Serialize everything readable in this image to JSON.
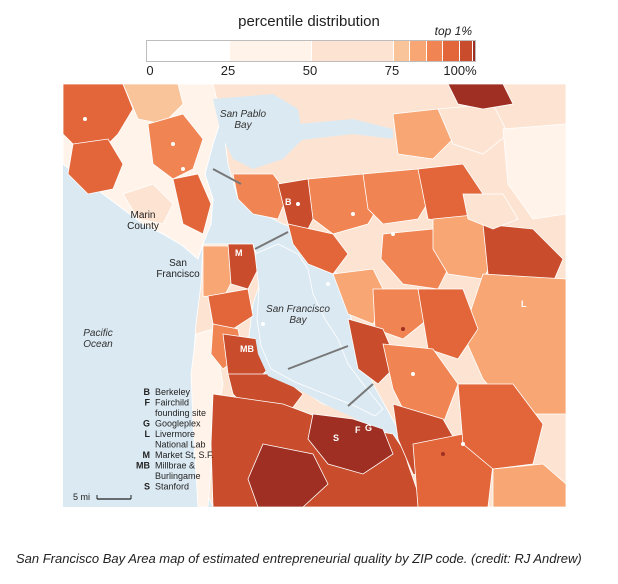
{
  "legend": {
    "title": "percentile distribution",
    "top_label": "top 1%",
    "ticks": [
      {
        "label": "0",
        "pos": 0
      },
      {
        "label": "25",
        "pos": 25
      },
      {
        "label": "50",
        "pos": 50
      },
      {
        "label": "75",
        "pos": 75
      },
      {
        "label": "100%",
        "pos": 100
      }
    ],
    "bins": [
      {
        "from": 0,
        "to": 25,
        "color": "#ffffff"
      },
      {
        "from": 25,
        "to": 50,
        "color": "#fff3ea"
      },
      {
        "from": 50,
        "to": 75,
        "color": "#fde4d2"
      },
      {
        "from": 75,
        "to": 80,
        "color": "#f9c49a"
      },
      {
        "from": 80,
        "to": 85,
        "color": "#f7a674"
      },
      {
        "from": 85,
        "to": 90,
        "color": "#f08452"
      },
      {
        "from": 90,
        "to": 95,
        "color": "#e2663a"
      },
      {
        "from": 95,
        "to": 99,
        "color": "#c94d2c"
      },
      {
        "from": 99,
        "to": 100,
        "color": "#9e2f22"
      }
    ]
  },
  "map": {
    "water_color": "#dbe9f2",
    "places": {
      "san_pablo_bay": "San Pablo\nBay",
      "marin_county": "Marin\nCounty",
      "san_francisco": "San\nFrancisco",
      "san_francisco_bay": "San Francisco\nBay",
      "pacific_ocean": "Pacific\nOcean"
    },
    "markers": {
      "berkeley": "B",
      "fairchild": "F",
      "googleplex": "G",
      "livermore": "L",
      "market_st": "M",
      "millbrae": "MB",
      "stanford": "S"
    },
    "key": [
      {
        "code": "B",
        "label": "Berkeley"
      },
      {
        "code": "F",
        "label": "Fairchild\nfounding site"
      },
      {
        "code": "G",
        "label": "Googleplex"
      },
      {
        "code": "L",
        "label": "Livermore\nNational Lab"
      },
      {
        "code": "M",
        "label": "Market St, S.F."
      },
      {
        "code": "MB",
        "label": "Millbrae &\nBurlingame"
      },
      {
        "code": "S",
        "label": "Stanford"
      }
    ],
    "scale_label": "5 mi"
  },
  "caption": "San Francisco Bay Area map of estimated entrepreneurial quality by ZIP code. (credit: RJ Andrew)"
}
